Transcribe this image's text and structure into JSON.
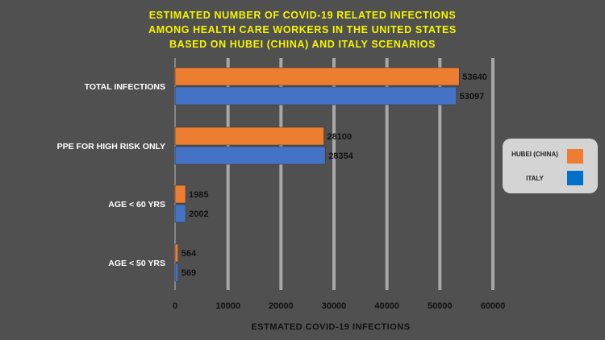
{
  "chart_data": {
    "type": "bar",
    "orientation": "horizontal",
    "title": [
      "ESTIMATED NUMBER OF COVID-19 RELATED INFECTIONS",
      "AMONG HEALTH CARE WORKERS IN THE UNITED STATES",
      "BASED ON HUBEI (CHINA) AND ITALY SCENARIOS"
    ],
    "xlabel": "ESTMATED COVID-19 INFECTIONS",
    "ylabel": "",
    "categories": [
      "TOTAL INFECTIONS",
      "PPE FOR HIGH RISK ONLY",
      "AGE < 60 YRS",
      "AGE < 50 YRS"
    ],
    "series": [
      {
        "name": "HUBEI (CHINA)",
        "color": "#ed7d31",
        "values": [
          53640,
          28100,
          1985,
          564
        ]
      },
      {
        "name": "ITALY",
        "color": "#4472c4",
        "values": [
          53097,
          28354,
          2002,
          569
        ]
      }
    ],
    "xlim": [
      0,
      60000
    ],
    "xticks": [
      0,
      10000,
      20000,
      30000,
      40000,
      50000,
      60000
    ],
    "grid": true,
    "legend": "right",
    "colors": {
      "background": "#505050",
      "title": "#f5f500",
      "grid": "#a8a8a8"
    }
  }
}
